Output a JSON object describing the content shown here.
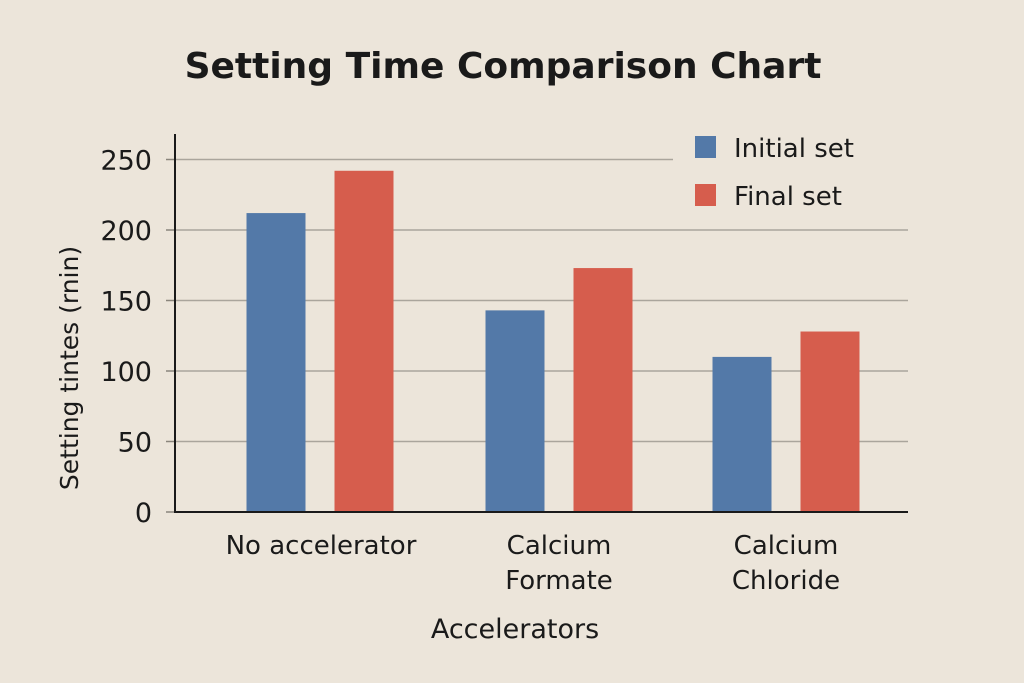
{
  "chart_data": {
    "type": "bar",
    "title": "Setting Time Comparison Chart",
    "xlabel": "Accelerators",
    "ylabel": "Setting tintes (rnin)",
    "categories": [
      [
        "No accelerator"
      ],
      [
        "Calcium",
        "Formate"
      ],
      [
        "Calcium",
        "Chloride"
      ]
    ],
    "series": [
      {
        "name": "Initial set",
        "color": "#5379a8",
        "values": [
          212,
          143,
          110
        ]
      },
      {
        "name": "Final set",
        "color": "#d65d4d",
        "values": [
          242,
          173,
          128
        ]
      }
    ],
    "ylim": [
      0,
      250
    ],
    "yticks": [
      0,
      50,
      100,
      150,
      200,
      250
    ],
    "grid": true,
    "legend": "top-right"
  }
}
